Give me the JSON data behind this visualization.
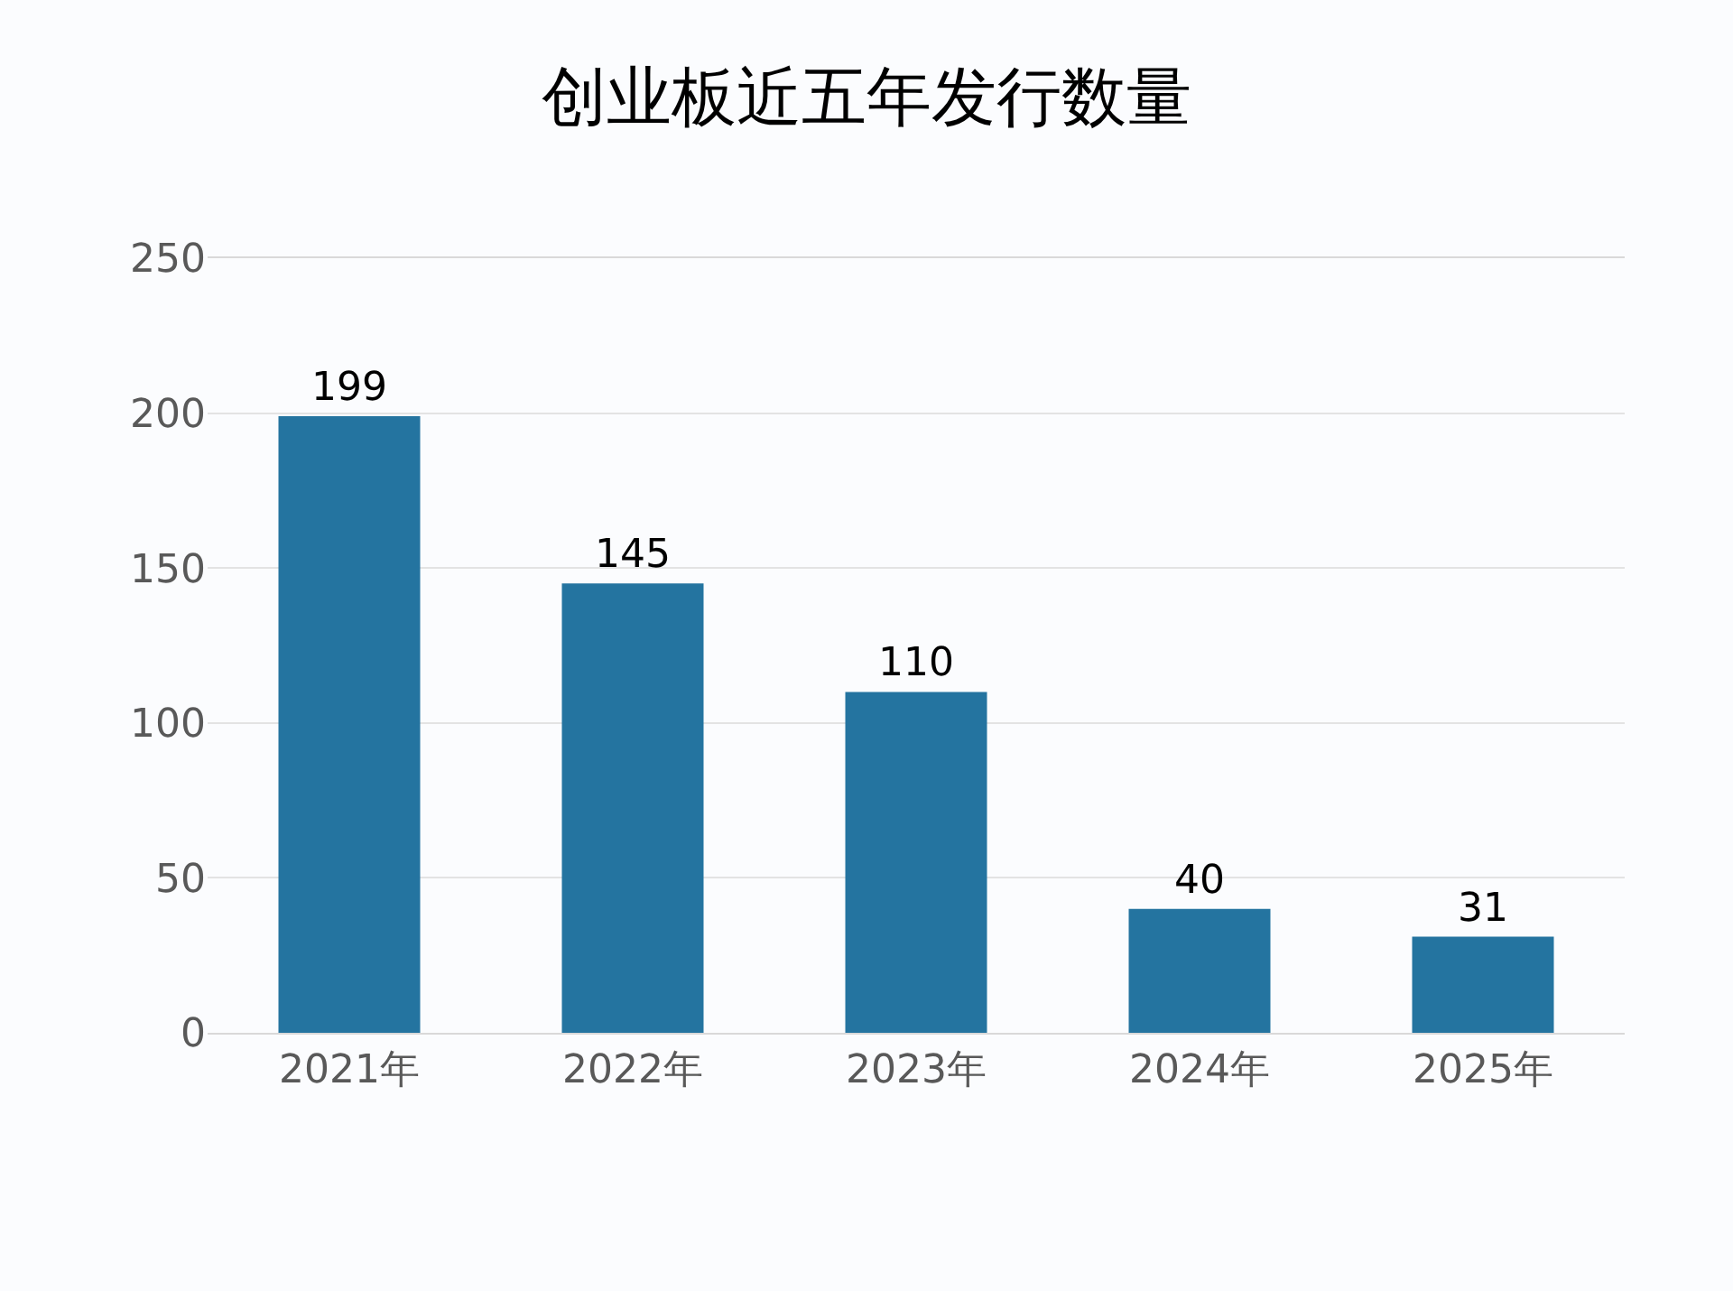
{
  "chart_data": {
    "type": "bar",
    "title": "创业板近五年发行数量",
    "categories": [
      "2021年",
      "2022年",
      "2023年",
      "2024年",
      "2025年"
    ],
    "values": [
      199,
      145,
      110,
      40,
      31
    ],
    "color": "#2474a0",
    "ylim": [
      0,
      250
    ],
    "yticks": [
      0,
      50,
      100,
      150,
      200,
      250
    ],
    "grid": "y",
    "data_labels": true
  }
}
